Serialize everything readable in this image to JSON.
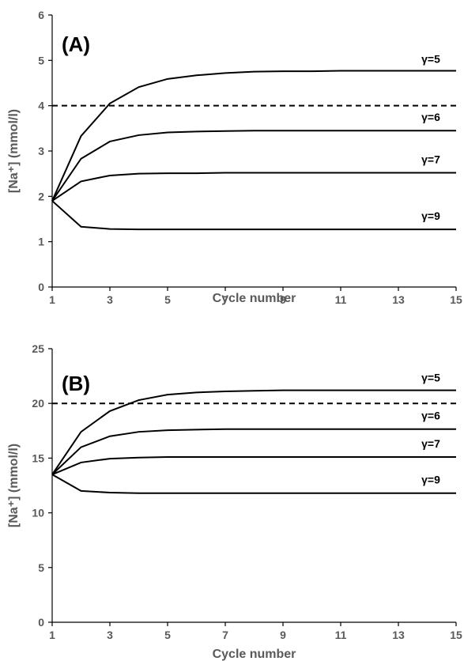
{
  "chart_data": [
    {
      "type": "line",
      "panel_label": "(A)",
      "xlabel": "Cycle number",
      "ylabel": "[Na⁺] (mmol/l)",
      "xlim": [
        1,
        15
      ],
      "ylim": [
        0,
        6
      ],
      "x_ticks": [
        "1",
        "3",
        "5",
        "7",
        "9",
        "11",
        "13",
        "15"
      ],
      "y_ticks": [
        "0",
        "1",
        "2",
        "3",
        "4",
        "5",
        "6"
      ],
      "reference_line": {
        "y": 4,
        "style": "dashed"
      },
      "x": [
        1,
        2,
        3,
        4,
        5,
        6,
        7,
        8,
        9,
        10,
        11,
        12,
        13,
        14,
        15
      ],
      "series": [
        {
          "name": "γ=5",
          "values": [
            1.9,
            3.33,
            4.05,
            4.41,
            4.59,
            4.67,
            4.72,
            4.75,
            4.76,
            4.76,
            4.77,
            4.77,
            4.77,
            4.77,
            4.77
          ]
        },
        {
          "name": "γ=6",
          "values": [
            1.9,
            2.83,
            3.21,
            3.35,
            3.41,
            3.43,
            3.44,
            3.45,
            3.45,
            3.45,
            3.45,
            3.45,
            3.45,
            3.45,
            3.45
          ]
        },
        {
          "name": "γ=7",
          "values": [
            1.9,
            2.33,
            2.46,
            2.5,
            2.51,
            2.51,
            2.52,
            2.52,
            2.52,
            2.52,
            2.52,
            2.52,
            2.52,
            2.52,
            2.52
          ]
        },
        {
          "name": "γ=9",
          "values": [
            1.9,
            1.33,
            1.28,
            1.27,
            1.27,
            1.27,
            1.27,
            1.27,
            1.27,
            1.27,
            1.27,
            1.27,
            1.27,
            1.27,
            1.27
          ]
        }
      ]
    },
    {
      "type": "line",
      "panel_label": "(B)",
      "xlabel": "Cycle number",
      "ylabel": "[Na⁺] (mmol/l)",
      "xlim": [
        1,
        15
      ],
      "ylim": [
        0,
        25
      ],
      "x_ticks": [
        "1",
        "3",
        "5",
        "7",
        "9",
        "11",
        "13",
        "15"
      ],
      "y_ticks": [
        "0",
        "5",
        "10",
        "15",
        "20",
        "25"
      ],
      "reference_line": {
        "y": 20,
        "style": "dashed"
      },
      "x": [
        1,
        2,
        3,
        4,
        5,
        6,
        7,
        8,
        9,
        10,
        11,
        12,
        13,
        14,
        15
      ],
      "series": [
        {
          "name": "γ=5",
          "values": [
            13.5,
            17.4,
            19.3,
            20.3,
            20.8,
            21.0,
            21.1,
            21.15,
            21.2,
            21.2,
            21.2,
            21.2,
            21.2,
            21.2,
            21.2
          ]
        },
        {
          "name": "γ=6",
          "values": [
            13.5,
            16.0,
            17.0,
            17.4,
            17.55,
            17.6,
            17.65,
            17.65,
            17.65,
            17.65,
            17.65,
            17.65,
            17.65,
            17.65,
            17.65
          ]
        },
        {
          "name": "γ=7",
          "values": [
            13.5,
            14.6,
            14.95,
            15.05,
            15.1,
            15.1,
            15.1,
            15.1,
            15.1,
            15.1,
            15.1,
            15.1,
            15.1,
            15.1,
            15.1
          ]
        },
        {
          "name": "γ=9",
          "values": [
            13.5,
            12.0,
            11.85,
            11.8,
            11.8,
            11.8,
            11.8,
            11.8,
            11.8,
            11.8,
            11.8,
            11.8,
            11.8,
            11.8,
            11.8
          ]
        }
      ]
    }
  ]
}
